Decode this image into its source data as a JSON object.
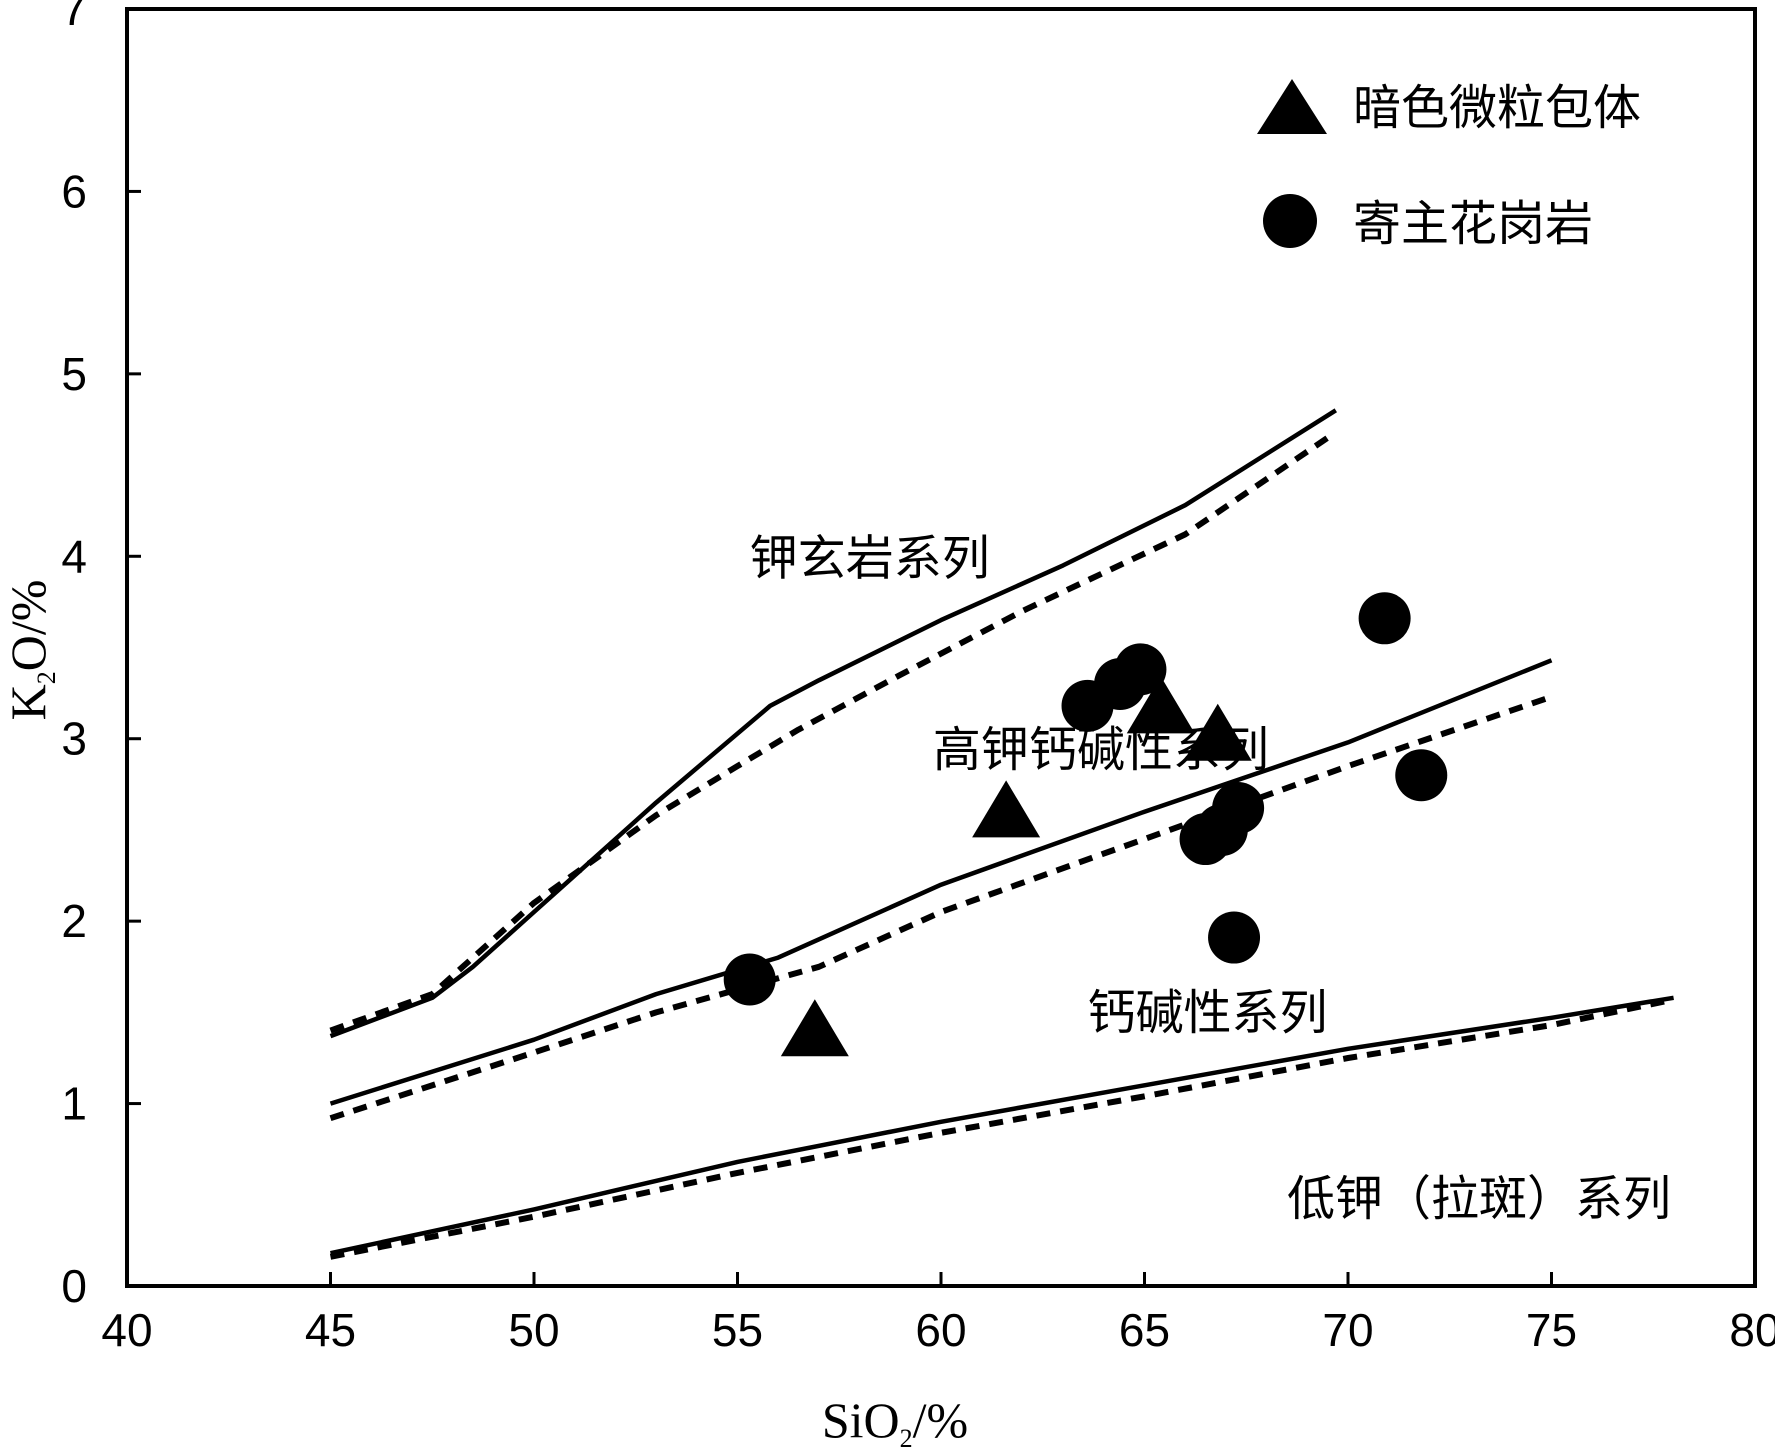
{
  "chart_data": {
    "type": "scatter",
    "title": "",
    "xlabel": {
      "main": "SiO",
      "sub": "2",
      "unit": "/%"
    },
    "ylabel": {
      "main": "K",
      "sub": "2",
      "rest": "O/%"
    },
    "xlim": [
      40,
      80
    ],
    "ylim": [
      0,
      7
    ],
    "xticks": [
      40,
      45,
      50,
      55,
      60,
      65,
      70,
      75,
      80
    ],
    "yticks": [
      0,
      1,
      2,
      3,
      4,
      5,
      6,
      7
    ],
    "grid": false,
    "legend_position": "top-right",
    "series": [
      {
        "name": "暗色微粒包体",
        "marker": "triangle",
        "color": "#000000",
        "points": [
          [
            56.9,
            1.38
          ],
          [
            61.6,
            2.58
          ],
          [
            65.4,
            3.15
          ],
          [
            66.8,
            3.0
          ]
        ]
      },
      {
        "name": "寄主花岗岩",
        "marker": "circle",
        "color": "#000000",
        "points": [
          [
            55.3,
            1.68
          ],
          [
            63.6,
            3.18
          ],
          [
            64.4,
            3.3
          ],
          [
            64.9,
            3.38
          ],
          [
            66.5,
            2.45
          ],
          [
            66.9,
            2.5
          ],
          [
            67.3,
            2.62
          ],
          [
            67.2,
            1.91
          ],
          [
            70.9,
            3.66
          ],
          [
            71.8,
            2.8
          ]
        ]
      }
    ],
    "boundaries": [
      {
        "style": "solid",
        "points": [
          [
            45,
            1.37
          ],
          [
            47.5,
            1.58
          ],
          [
            48.5,
            1.75
          ],
          [
            50,
            2.05
          ],
          [
            53,
            2.65
          ],
          [
            55.8,
            3.18
          ],
          [
            57,
            3.32
          ],
          [
            60,
            3.65
          ],
          [
            63,
            3.95
          ],
          [
            66,
            4.28
          ],
          [
            69.7,
            4.8
          ]
        ]
      },
      {
        "style": "dashed",
        "points": [
          [
            45,
            1.4
          ],
          [
            47.5,
            1.6
          ],
          [
            50,
            2.1
          ],
          [
            53,
            2.58
          ],
          [
            55,
            2.85
          ],
          [
            56.5,
            3.05
          ],
          [
            59,
            3.35
          ],
          [
            62,
            3.7
          ],
          [
            66,
            4.12
          ],
          [
            69.5,
            4.65
          ]
        ]
      },
      {
        "style": "solid",
        "points": [
          [
            45,
            1.0
          ],
          [
            50,
            1.35
          ],
          [
            53,
            1.6
          ],
          [
            56,
            1.8
          ],
          [
            60,
            2.2
          ],
          [
            65,
            2.6
          ],
          [
            70,
            2.98
          ],
          [
            75,
            3.43
          ]
        ]
      },
      {
        "style": "dashed",
        "points": [
          [
            45,
            0.92
          ],
          [
            50,
            1.28
          ],
          [
            53,
            1.5
          ],
          [
            57,
            1.75
          ],
          [
            60,
            2.05
          ],
          [
            65,
            2.45
          ],
          [
            70,
            2.85
          ],
          [
            75,
            3.23
          ]
        ]
      },
      {
        "style": "solid",
        "points": [
          [
            45,
            0.18
          ],
          [
            50,
            0.42
          ],
          [
            55,
            0.68
          ],
          [
            60,
            0.9
          ],
          [
            65,
            1.1
          ],
          [
            70,
            1.3
          ],
          [
            75,
            1.47
          ],
          [
            78,
            1.58
          ]
        ]
      },
      {
        "style": "dashed",
        "points": [
          [
            45,
            0.16
          ],
          [
            50,
            0.38
          ],
          [
            55,
            0.62
          ],
          [
            60,
            0.84
          ],
          [
            65,
            1.04
          ],
          [
            70,
            1.25
          ],
          [
            75,
            1.43
          ],
          [
            78,
            1.57
          ]
        ]
      }
    ],
    "region_labels": [
      {
        "text": "钾玄岩系列",
        "x": 55.3,
        "y": 3.9
      },
      {
        "text": "高钾钙碱性系列",
        "x": 59.8,
        "y": 2.85
      },
      {
        "text": "钙碱性系列",
        "x": 63.6,
        "y": 1.41
      },
      {
        "text": "低钾（拉斑）系列",
        "x": 68.5,
        "y": 0.39
      }
    ]
  }
}
